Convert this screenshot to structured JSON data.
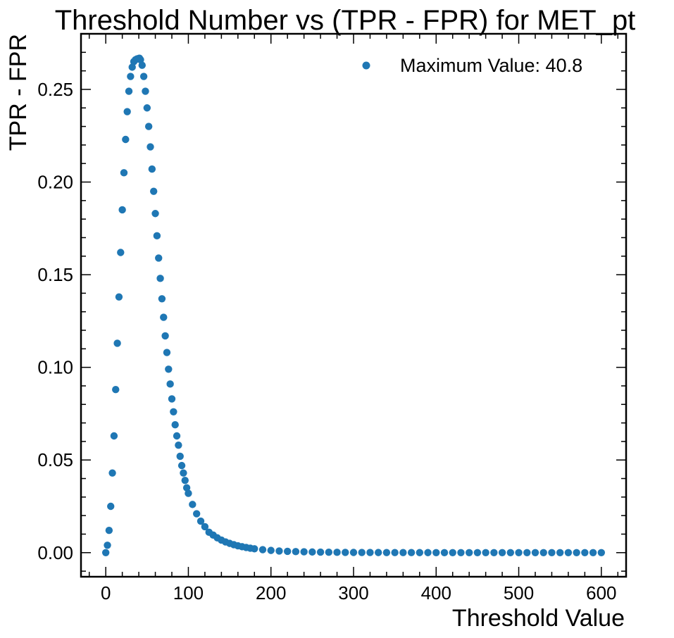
{
  "chart_data": {
    "type": "scatter",
    "title": "Threshold Number vs (TPR - FPR) for MET_pt",
    "xlabel": "Threshold Value",
    "ylabel": "TPR - FPR",
    "xlim": [
      -30,
      630
    ],
    "ylim": [
      -0.013,
      0.28
    ],
    "xticks": [
      0,
      100,
      200,
      300,
      400,
      500,
      600
    ],
    "xtick_labels": [
      "0",
      "100",
      "200",
      "300",
      "400",
      "500",
      "600"
    ],
    "yticks": [
      0.0,
      0.05,
      0.1,
      0.15,
      0.2,
      0.25
    ],
    "ytick_labels": [
      "0.00",
      "0.05",
      "0.10",
      "0.15",
      "0.20",
      "0.25"
    ],
    "grid": false,
    "legend": {
      "position": "top-right",
      "entries": [
        "Maximum Value: 40.8"
      ]
    },
    "series": [
      {
        "name": "Maximum Value: 40.8",
        "color": "#1f77b4",
        "x": [
          0,
          2,
          4,
          6,
          8,
          10,
          12,
          14,
          16,
          18,
          20,
          22,
          24,
          26,
          28,
          30,
          32,
          34,
          36,
          38,
          40,
          40.8,
          42,
          44,
          46,
          48,
          50,
          52,
          54,
          56,
          58,
          60,
          62,
          64,
          66,
          68,
          70,
          72,
          74,
          76,
          78,
          80,
          82,
          84,
          86,
          88,
          90,
          92,
          94,
          96,
          98,
          100,
          105,
          110,
          115,
          120,
          125,
          130,
          135,
          140,
          145,
          150,
          155,
          160,
          165,
          170,
          175,
          180,
          190,
          200,
          210,
          220,
          230,
          240,
          250,
          260,
          270,
          280,
          290,
          300,
          310,
          320,
          330,
          340,
          350,
          360,
          370,
          380,
          390,
          400,
          410,
          420,
          430,
          440,
          450,
          460,
          470,
          480,
          490,
          500,
          510,
          520,
          530,
          540,
          550,
          560,
          570,
          580,
          590,
          600
        ],
        "y": [
          0.0,
          0.004,
          0.012,
          0.025,
          0.043,
          0.063,
          0.088,
          0.113,
          0.138,
          0.162,
          0.185,
          0.205,
          0.223,
          0.238,
          0.249,
          0.257,
          0.262,
          0.265,
          0.266,
          0.2665,
          0.2667,
          0.2668,
          0.266,
          0.263,
          0.257,
          0.249,
          0.24,
          0.23,
          0.219,
          0.207,
          0.195,
          0.183,
          0.171,
          0.159,
          0.148,
          0.137,
          0.127,
          0.117,
          0.108,
          0.099,
          0.091,
          0.083,
          0.076,
          0.069,
          0.063,
          0.058,
          0.052,
          0.047,
          0.043,
          0.039,
          0.035,
          0.032,
          0.026,
          0.021,
          0.017,
          0.014,
          0.011,
          0.0095,
          0.008,
          0.0068,
          0.0058,
          0.005,
          0.0043,
          0.0037,
          0.0032,
          0.0028,
          0.0024,
          0.0021,
          0.0016,
          0.0012,
          0.0009,
          0.0007,
          0.00055,
          0.00045,
          0.00035,
          0.00028,
          0.00022,
          0.00018,
          0.00014,
          0.00011,
          9e-05,
          7e-05,
          6e-05,
          5e-05,
          4e-05,
          3e-05,
          3e-05,
          2e-05,
          2e-05,
          1e-05,
          1e-05,
          1e-05,
          1e-05,
          1e-05,
          0,
          0,
          0,
          0,
          0,
          0,
          0,
          0,
          0,
          0,
          0,
          0,
          0,
          0,
          0,
          0
        ]
      }
    ]
  }
}
